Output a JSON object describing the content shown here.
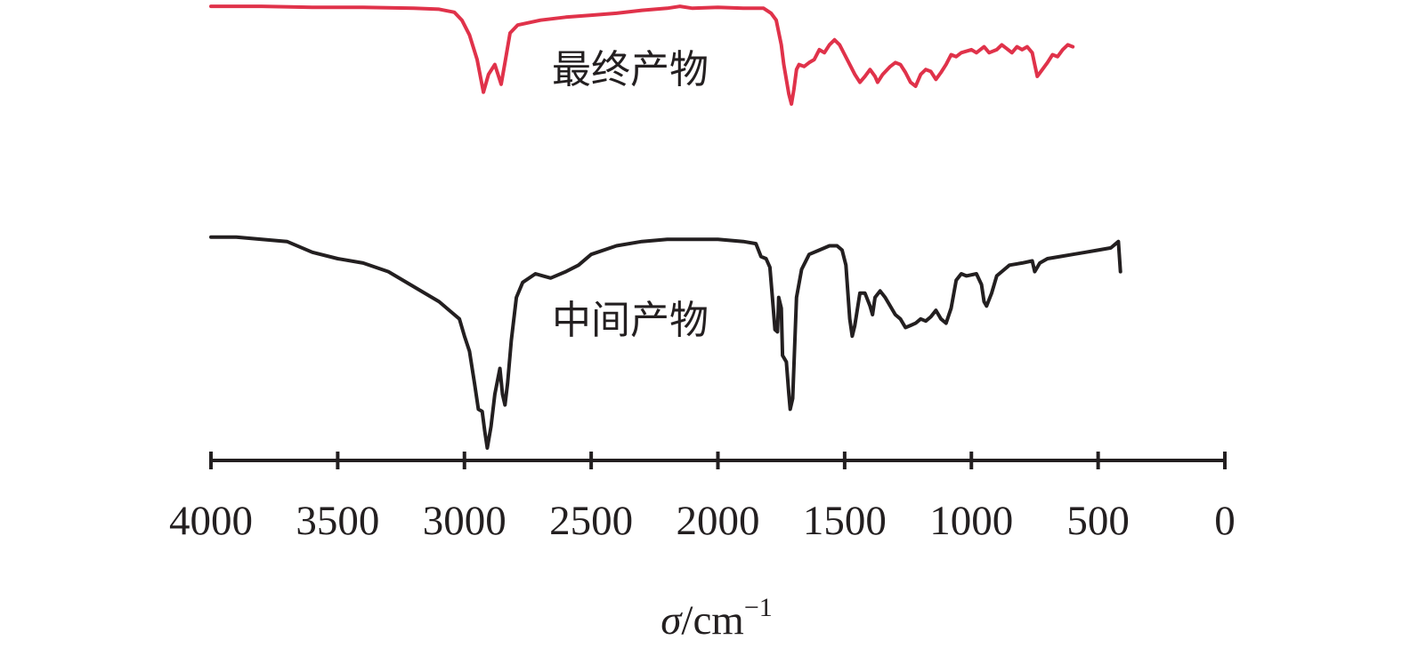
{
  "chart_data": {
    "type": "line",
    "title": "",
    "xlabel": {
      "symbol": "σ",
      "unit": "/cm",
      "exponent": "−1"
    },
    "ylabel": "",
    "xlim": [
      4000,
      0
    ],
    "x_reversed": true,
    "xticks": [
      4000,
      3500,
      3000,
      2500,
      2000,
      1500,
      1000,
      500,
      0
    ],
    "y_axis_visible": false,
    "grid": false,
    "legend": "none",
    "value_note": "transmittance values are relative (0 = deepest absorption, 100 = baseline); no y scale is printed",
    "series": [
      {
        "name": "最终产物",
        "color": "#e0324a",
        "label_near_x": 3150,
        "points": [
          [
            4000,
            99
          ],
          [
            3800,
            99
          ],
          [
            3600,
            98
          ],
          [
            3400,
            98
          ],
          [
            3200,
            97
          ],
          [
            3100,
            96
          ],
          [
            3040,
            93
          ],
          [
            3010,
            85
          ],
          [
            2980,
            70
          ],
          [
            2950,
            45
          ],
          [
            2925,
            12
          ],
          [
            2905,
            30
          ],
          [
            2880,
            40
          ],
          [
            2855,
            20
          ],
          [
            2840,
            42
          ],
          [
            2820,
            72
          ],
          [
            2790,
            80
          ],
          [
            2700,
            85
          ],
          [
            2600,
            88
          ],
          [
            2500,
            90
          ],
          [
            2400,
            92
          ],
          [
            2300,
            95
          ],
          [
            2200,
            97
          ],
          [
            2150,
            99
          ],
          [
            2100,
            97
          ],
          [
            2000,
            98
          ],
          [
            1900,
            97
          ],
          [
            1820,
            97
          ],
          [
            1790,
            92
          ],
          [
            1770,
            85
          ],
          [
            1750,
            60
          ],
          [
            1740,
            40
          ],
          [
            1720,
            10
          ],
          [
            1710,
            0
          ],
          [
            1700,
            15
          ],
          [
            1690,
            35
          ],
          [
            1680,
            40
          ],
          [
            1660,
            38
          ],
          [
            1640,
            42
          ],
          [
            1620,
            45
          ],
          [
            1600,
            55
          ],
          [
            1580,
            52
          ],
          [
            1560,
            60
          ],
          [
            1540,
            65
          ],
          [
            1520,
            60
          ],
          [
            1500,
            50
          ],
          [
            1480,
            40
          ],
          [
            1460,
            30
          ],
          [
            1440,
            22
          ],
          [
            1420,
            28
          ],
          [
            1400,
            35
          ],
          [
            1380,
            28
          ],
          [
            1370,
            22
          ],
          [
            1350,
            30
          ],
          [
            1320,
            38
          ],
          [
            1300,
            42
          ],
          [
            1280,
            40
          ],
          [
            1260,
            32
          ],
          [
            1240,
            22
          ],
          [
            1220,
            18
          ],
          [
            1200,
            30
          ],
          [
            1180,
            35
          ],
          [
            1160,
            33
          ],
          [
            1140,
            25
          ],
          [
            1120,
            32
          ],
          [
            1100,
            40
          ],
          [
            1080,
            50
          ],
          [
            1060,
            48
          ],
          [
            1040,
            52
          ],
          [
            1000,
            55
          ],
          [
            980,
            52
          ],
          [
            950,
            58
          ],
          [
            930,
            52
          ],
          [
            900,
            55
          ],
          [
            880,
            60
          ],
          [
            860,
            56
          ],
          [
            840,
            52
          ],
          [
            820,
            58
          ],
          [
            800,
            55
          ],
          [
            780,
            58
          ],
          [
            760,
            52
          ],
          [
            750,
            40
          ],
          [
            740,
            28
          ],
          [
            720,
            35
          ],
          [
            700,
            42
          ],
          [
            680,
            50
          ],
          [
            660,
            48
          ],
          [
            640,
            55
          ],
          [
            620,
            60
          ],
          [
            600,
            58
          ]
        ]
      },
      {
        "name": "中间产物",
        "color": "#231f20",
        "label_near_x": 3150,
        "points": [
          [
            4000,
            98
          ],
          [
            3900,
            98
          ],
          [
            3800,
            97
          ],
          [
            3700,
            96
          ],
          [
            3600,
            91
          ],
          [
            3500,
            88
          ],
          [
            3400,
            86
          ],
          [
            3300,
            82
          ],
          [
            3200,
            75
          ],
          [
            3100,
            68
          ],
          [
            3050,
            63
          ],
          [
            3020,
            60
          ],
          [
            3000,
            52
          ],
          [
            2980,
            45
          ],
          [
            2960,
            30
          ],
          [
            2945,
            18
          ],
          [
            2930,
            17
          ],
          [
            2920,
            8
          ],
          [
            2910,
            0
          ],
          [
            2895,
            10
          ],
          [
            2880,
            25
          ],
          [
            2860,
            37
          ],
          [
            2850,
            25
          ],
          [
            2840,
            20
          ],
          [
            2830,
            30
          ],
          [
            2815,
            50
          ],
          [
            2795,
            70
          ],
          [
            2770,
            77
          ],
          [
            2720,
            81
          ],
          [
            2690,
            80
          ],
          [
            2660,
            79
          ],
          [
            2600,
            82
          ],
          [
            2550,
            85
          ],
          [
            2500,
            90
          ],
          [
            2400,
            94
          ],
          [
            2300,
            96
          ],
          [
            2200,
            97
          ],
          [
            2100,
            97
          ],
          [
            2000,
            97
          ],
          [
            1900,
            96
          ],
          [
            1850,
            95
          ],
          [
            1830,
            89
          ],
          [
            1810,
            88
          ],
          [
            1795,
            84
          ],
          [
            1785,
            70
          ],
          [
            1775,
            55
          ],
          [
            1765,
            54
          ],
          [
            1760,
            70
          ],
          [
            1750,
            65
          ],
          [
            1745,
            43
          ],
          [
            1730,
            40
          ],
          [
            1720,
            25
          ],
          [
            1715,
            18
          ],
          [
            1705,
            23
          ],
          [
            1690,
            70
          ],
          [
            1670,
            83
          ],
          [
            1640,
            90
          ],
          [
            1600,
            92
          ],
          [
            1560,
            94
          ],
          [
            1530,
            94
          ],
          [
            1510,
            92
          ],
          [
            1495,
            85
          ],
          [
            1480,
            60
          ],
          [
            1470,
            52
          ],
          [
            1460,
            57
          ],
          [
            1440,
            72
          ],
          [
            1420,
            72
          ],
          [
            1400,
            66
          ],
          [
            1390,
            62
          ],
          [
            1380,
            70
          ],
          [
            1360,
            73
          ],
          [
            1340,
            70
          ],
          [
            1300,
            62
          ],
          [
            1280,
            60
          ],
          [
            1260,
            56
          ],
          [
            1240,
            57
          ],
          [
            1220,
            58
          ],
          [
            1200,
            60
          ],
          [
            1180,
            59
          ],
          [
            1160,
            61
          ],
          [
            1140,
            64
          ],
          [
            1120,
            60
          ],
          [
            1100,
            58
          ],
          [
            1080,
            65
          ],
          [
            1060,
            78
          ],
          [
            1040,
            81
          ],
          [
            1020,
            80
          ],
          [
            980,
            81
          ],
          [
            960,
            76
          ],
          [
            950,
            68
          ],
          [
            940,
            66
          ],
          [
            920,
            72
          ],
          [
            900,
            80
          ],
          [
            870,
            83
          ],
          [
            850,
            85
          ],
          [
            800,
            86
          ],
          [
            760,
            87
          ],
          [
            750,
            82
          ],
          [
            730,
            86
          ],
          [
            700,
            88
          ],
          [
            650,
            89
          ],
          [
            600,
            90
          ],
          [
            550,
            91
          ],
          [
            500,
            92
          ],
          [
            450,
            93
          ],
          [
            420,
            96
          ],
          [
            412,
            82
          ]
        ]
      }
    ]
  }
}
